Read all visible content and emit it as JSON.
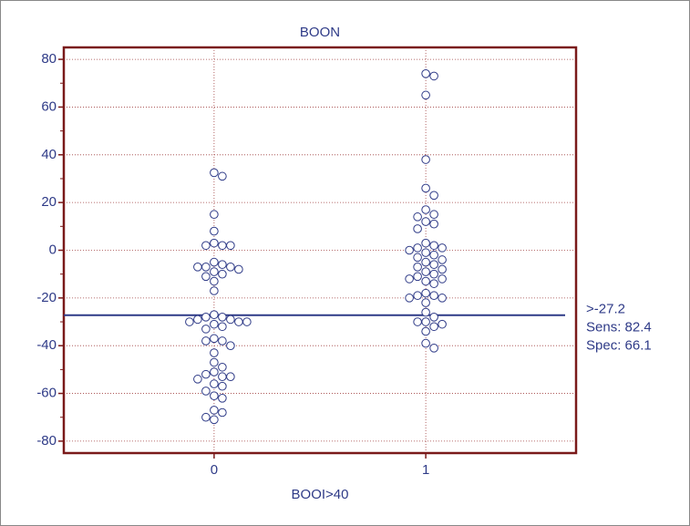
{
  "chart_data": {
    "type": "dot",
    "title": "BOON",
    "x_label": "BOOI>40",
    "xlim": [
      -0.71,
      1.71
    ],
    "xticks": [
      0,
      1
    ],
    "ylim": [
      -85,
      85
    ],
    "yticks": [
      -80,
      -60,
      -40,
      -20,
      0,
      20,
      40,
      60,
      80
    ],
    "grid": true,
    "marker_color": "#2e3a87",
    "frame_color": "#7a1a1a",
    "grid_color": "#a04040",
    "series": [
      {
        "x": 0,
        "values": [
          32.5,
          31,
          15,
          8,
          3,
          2,
          2,
          2,
          -5,
          -6,
          -7,
          -7,
          -7,
          -8,
          -9,
          -10,
          -11,
          -13,
          -17,
          -27,
          -28,
          -28,
          -29,
          -29,
          -30,
          -30,
          -30,
          -31,
          -32,
          -33,
          -37,
          -38,
          -38,
          -40,
          -43,
          -47,
          -49,
          -51,
          -52,
          -53,
          -53,
          -54,
          -56,
          -57,
          -59,
          -61,
          -62,
          -67,
          -68,
          -70,
          -71
        ]
      },
      {
        "x": 1,
        "values": [
          74,
          73,
          65,
          38,
          26,
          23,
          17,
          15,
          14,
          12,
          11,
          9,
          3,
          2,
          1,
          1,
          0,
          -1,
          -2,
          -3,
          -4,
          -5,
          -6,
          -7,
          -8,
          -9,
          -10,
          -11,
          -12,
          -12,
          -13,
          -14,
          -18,
          -19,
          -19,
          -20,
          -20,
          -22,
          -26,
          -28,
          -30,
          -30,
          -31,
          -32,
          -34,
          -39,
          -41
        ]
      }
    ],
    "cutoff": {
      "value": -27.2,
      "label": ">-27.2",
      "color": "#2e3a87"
    },
    "annotations": [
      "Sens: 82.4",
      "Spec: 66.1"
    ]
  }
}
